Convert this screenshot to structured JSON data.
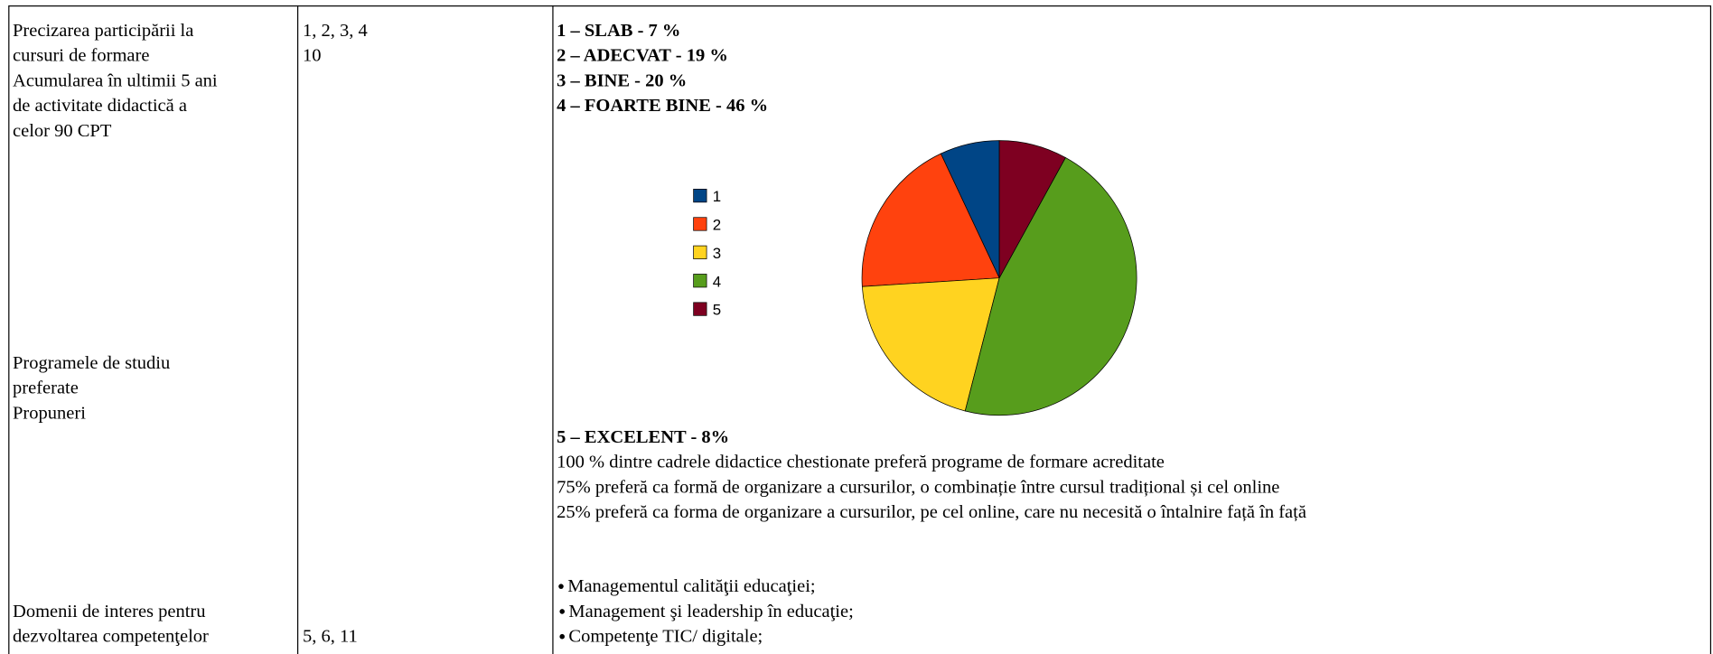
{
  "criteria_1": [
    "Precizarea participării la",
    "cursuri de formare",
    "Acumularea în ultimii 5 ani",
    "de activitate didactică a",
    "celor 90 CPT"
  ],
  "criteria_2": [
    "Programele de studiu",
    "preferate",
    "Propuneri"
  ],
  "criteria_3": [
    "Domenii de interes pentru",
    "dezvoltarea competenţelor"
  ],
  "items_1": [
    "1, 2, 3, 4",
    "10"
  ],
  "items_3": "5, 6, 11",
  "results": [
    "1 – SLAB - 7 %",
    "2 – ADECVAT - 19 %",
    "3 – BINE - 20 %",
    "4 – FOARTE BINE - 46 %"
  ],
  "result_5": "5 – EXCELENT - 8%",
  "statements": [
    "100 % dintre cadrele didactice chestionate preferă programe de formare acreditate",
    "75% preferă ca formă de organizare a cursurilor, o combinație între cursul  tradițional și cel online",
    "25% preferă ca forma de organizare a cursurilor, pe cel online, care nu necesită o întalnire față în față"
  ],
  "domains": [
    "Managementul calităţii educaţiei;",
    "Management şi leadership în educaţie;",
    "Competenţe TIC/ digitale;"
  ],
  "chart_data": {
    "type": "pie",
    "categories": [
      "1",
      "2",
      "3",
      "4",
      "5"
    ],
    "values": [
      7,
      19,
      20,
      46,
      8
    ],
    "colors": [
      "#004586",
      "#ff420e",
      "#ffd320",
      "#579d1c",
      "#7e0021"
    ],
    "legend": "left"
  }
}
